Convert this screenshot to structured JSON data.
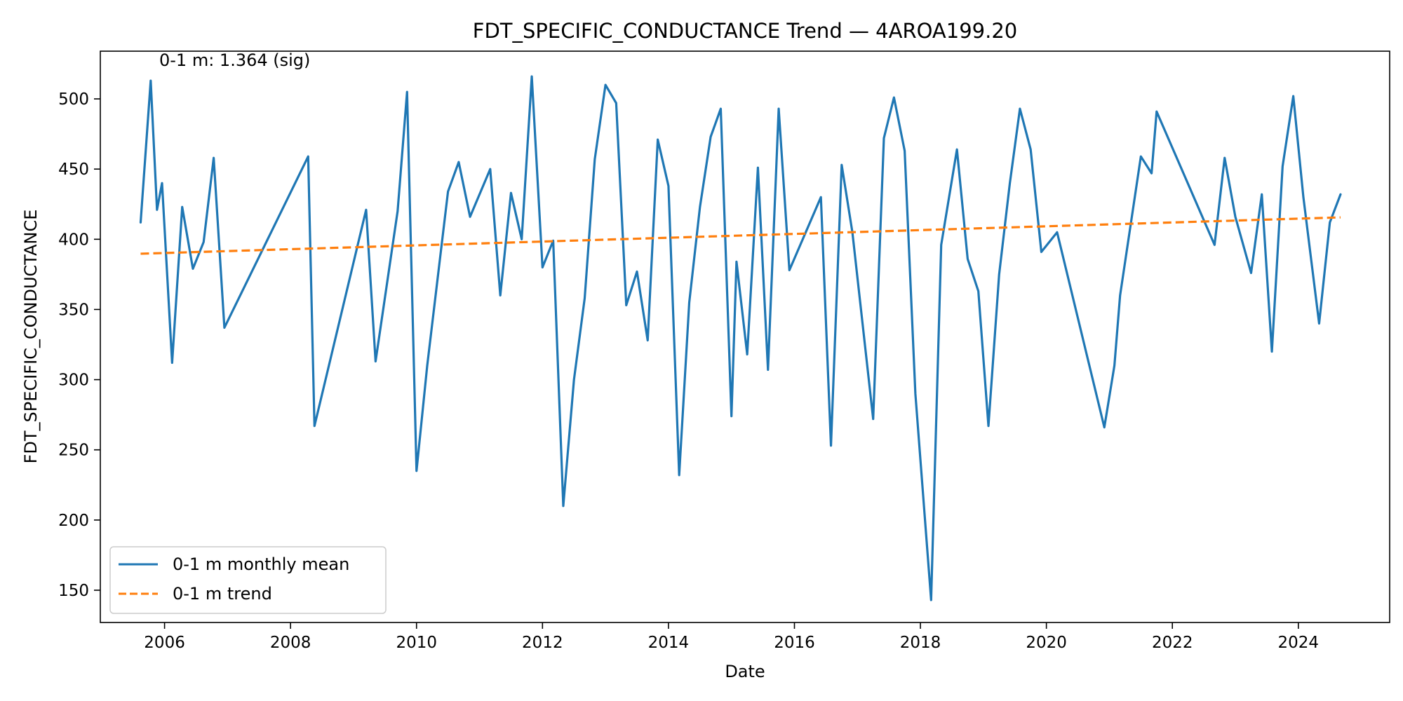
{
  "chart_data": {
    "type": "line",
    "title": "FDT_SPECIFIC_CONDUCTANCE Trend — 4AROA199.20",
    "xlabel": "Date",
    "ylabel": "FDT_SPECIFIC_CONDUCTANCE",
    "xlim": [
      2004.98,
      2025.45
    ],
    "ylim": [
      127,
      534
    ],
    "x_ticks": [
      2006,
      2008,
      2010,
      2012,
      2014,
      2016,
      2018,
      2020,
      2022,
      2024
    ],
    "x_tick_labels": [
      "2006",
      "2008",
      "2010",
      "2012",
      "2014",
      "2016",
      "2018",
      "2020",
      "2022",
      "2024"
    ],
    "y_ticks": [
      150,
      200,
      250,
      300,
      350,
      400,
      450,
      500
    ],
    "y_tick_labels": [
      "150",
      "200",
      "250",
      "300",
      "350",
      "400",
      "450",
      "500"
    ],
    "grid": false,
    "legend_position": "lower-left",
    "annotation": "0-1 m: 1.364 (sig)",
    "series": [
      {
        "name": "0-1 m monthly mean",
        "color": "#1f77b4",
        "style": "solid",
        "x": [
          2005.62,
          2005.78,
          2005.88,
          2005.96,
          2006.12,
          2006.28,
          2006.45,
          2006.62,
          2006.78,
          2006.95,
          2008.28,
          2008.38,
          2009.2,
          2009.35,
          2009.7,
          2009.85,
          2010.0,
          2010.17,
          2010.5,
          2010.67,
          2010.85,
          2011.17,
          2011.33,
          2011.5,
          2011.67,
          2011.83,
          2012.0,
          2012.17,
          2012.33,
          2012.5,
          2012.67,
          2012.83,
          2013.0,
          2013.17,
          2013.33,
          2013.5,
          2013.67,
          2013.83,
          2014.0,
          2014.17,
          2014.33,
          2014.5,
          2014.67,
          2014.83,
          2015.0,
          2015.08,
          2015.25,
          2015.42,
          2015.58,
          2015.75,
          2015.92,
          2016.42,
          2016.58,
          2016.75,
          2016.92,
          2017.25,
          2017.42,
          2017.58,
          2017.75,
          2017.92,
          2018.17,
          2018.33,
          2018.58,
          2018.75,
          2018.92,
          2019.08,
          2019.25,
          2019.42,
          2019.58,
          2019.75,
          2019.92,
          2020.17,
          2020.92,
          2021.08,
          2021.17,
          2021.5,
          2021.67,
          2021.75,
          2022.67,
          2022.83,
          2023.0,
          2023.25,
          2023.42,
          2023.58,
          2023.75,
          2023.92,
          2024.08,
          2024.33,
          2024.5,
          2024.67
        ],
        "y": [
          412,
          513,
          421,
          440,
          312,
          423,
          379,
          398,
          458,
          337,
          459,
          267,
          421,
          313,
          420,
          505,
          235,
          310,
          434,
          455,
          416,
          450,
          360,
          433,
          400,
          516,
          380,
          399,
          210,
          300,
          358,
          457,
          510,
          497,
          353,
          377,
          328,
          471,
          438,
          232,
          355,
          423,
          473,
          493,
          274,
          384,
          318,
          451,
          307,
          493,
          378,
          430,
          253,
          453,
          405,
          272,
          472,
          501,
          463,
          290,
          143,
          396,
          464,
          386,
          363,
          267,
          375,
          440,
          493,
          464,
          391,
          405,
          266,
          310,
          360,
          459,
          447,
          491,
          396,
          458,
          416,
          376,
          432,
          320,
          452,
          502,
          430,
          340,
          412,
          432
        ]
      },
      {
        "name": "0-1 m trend",
        "color": "#ff7f0e",
        "style": "dashed",
        "x": [
          2005.62,
          2024.67
        ],
        "y": [
          389.7,
          415.6
        ]
      }
    ]
  }
}
